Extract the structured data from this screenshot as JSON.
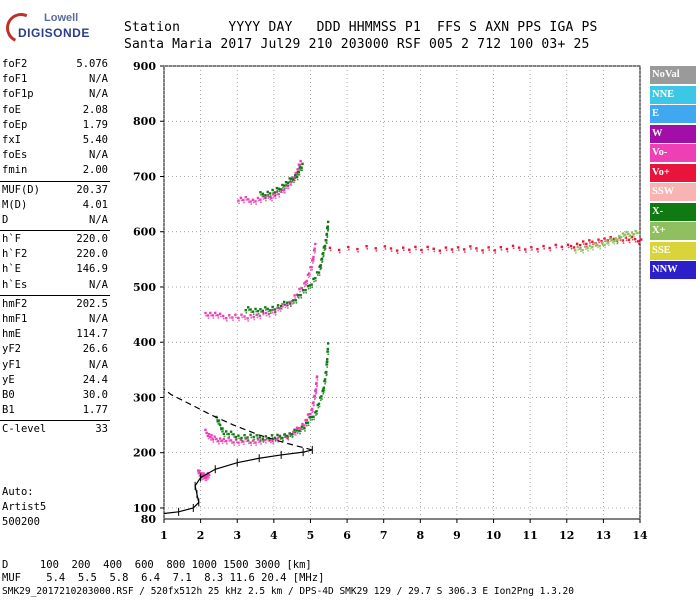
{
  "logo": {
    "line1": "Lowell",
    "line2": "DIGISONDE"
  },
  "header": {
    "row1": "Station      YYYY DAY   DDD HHMMSS P1  FFS S AXN PPS IGA PS",
    "row2": "Santa Maria 2017 Jul29 210 203000 RSF 005 2 712 100 03+ 25"
  },
  "params": [
    {
      "k": "foF2",
      "v": "5.076"
    },
    {
      "k": "foF1",
      "v": "N/A"
    },
    {
      "k": "foF1p",
      "v": "N/A"
    },
    {
      "k": "foE",
      "v": "2.08"
    },
    {
      "k": "foEp",
      "v": "1.79"
    },
    {
      "k": "fxI",
      "v": "5.40"
    },
    {
      "k": "foEs",
      "v": "N/A"
    },
    {
      "k": "fmin",
      "v": "2.00"
    }
  ],
  "params2": [
    {
      "k": "MUF(D)",
      "v": "20.37"
    },
    {
      "k": "M(D)",
      "v": "4.01"
    },
    {
      "k": "D",
      "v": "N/A"
    }
  ],
  "params3": [
    {
      "k": "h`F",
      "v": "220.0"
    },
    {
      "k": "h`F2",
      "v": "220.0"
    },
    {
      "k": "h`E",
      "v": "146.9"
    },
    {
      "k": "h`Es",
      "v": "N/A"
    }
  ],
  "params4": [
    {
      "k": "hmF2",
      "v": "202.5"
    },
    {
      "k": "hmF1",
      "v": "N/A"
    },
    {
      "k": "hmE",
      "v": "114.7"
    },
    {
      "k": "yF2",
      "v": "26.6"
    },
    {
      "k": "yF1",
      "v": "N/A"
    },
    {
      "k": "yE",
      "v": "24.4"
    },
    {
      "k": "B0",
      "v": "30.0"
    },
    {
      "k": "B1",
      "v": "1.77"
    }
  ],
  "params5": [
    {
      "k": "C-level",
      "v": "33"
    }
  ],
  "auto": {
    "l1": "Auto:",
    "l2": "Artist5",
    "l3": "500200"
  },
  "legend": [
    {
      "label": "NoVal",
      "color": "#9a9a9a"
    },
    {
      "label": "NNE",
      "color": "#3cc7e6"
    },
    {
      "label": "E",
      "color": "#3fa8f0"
    },
    {
      "label": "W",
      "color": "#a10ea8"
    },
    {
      "label": "Vo-",
      "color": "#ee3fb5"
    },
    {
      "label": "Vo+",
      "color": "#e8143b"
    },
    {
      "label": "SSW",
      "color": "#f8b3b3"
    },
    {
      "label": "X-",
      "color": "#0f7a12"
    },
    {
      "label": "X+",
      "color": "#8fbf5f"
    },
    {
      "label": "SSE",
      "color": "#d8d43a"
    },
    {
      "label": "NNW",
      "color": "#2a1fc9"
    }
  ],
  "bottom": {
    "dline": "D     100  200  400  600  800 1000 1500 3000 [km]",
    "mufline": "MUF    5.4  5.5  5.8  6.4  7.1  8.3 11.6 20.4 [MHz]"
  },
  "footer": "SMK29_2017210203000.RSF / 520fx512h 25 kHz 2.5 km / DPS-4D SMK29 129 / 29.7 S 306.3 E Ion2Png 1.3.20",
  "chart_data": {
    "type": "scatter",
    "xlim": [
      1,
      14
    ],
    "ylim": [
      80,
      900
    ],
    "xticks": [
      1,
      2,
      3,
      4,
      5,
      6,
      7,
      8,
      9,
      10,
      11,
      12,
      13,
      14
    ],
    "yticks": [
      100,
      200,
      300,
      400,
      500,
      600,
      700,
      800,
      900
    ],
    "ytick_labels_extra": {
      "80": "80"
    },
    "xlabel": "",
    "ylabel": "",
    "traces": [
      {
        "name": "F2 O-trace (1st hop)",
        "color": "#ee3fb5",
        "points": [
          [
            2.1,
            240
          ],
          [
            2.3,
            228
          ],
          [
            2.6,
            225
          ],
          [
            3.0,
            224
          ],
          [
            3.4,
            224
          ],
          [
            3.8,
            225
          ],
          [
            4.2,
            230
          ],
          [
            4.5,
            238
          ],
          [
            4.8,
            255
          ],
          [
            5.0,
            280
          ],
          [
            5.1,
            310
          ],
          [
            5.15,
            340
          ]
        ]
      },
      {
        "name": "F2 X-trace (1st hop)",
        "color": "#0f7a12",
        "points": [
          [
            2.4,
            265
          ],
          [
            2.6,
            240
          ],
          [
            3.0,
            233
          ],
          [
            3.5,
            230
          ],
          [
            4.0,
            230
          ],
          [
            4.4,
            235
          ],
          [
            4.8,
            250
          ],
          [
            5.1,
            275
          ],
          [
            5.3,
            310
          ],
          [
            5.4,
            350
          ],
          [
            5.45,
            400
          ]
        ]
      },
      {
        "name": "F2 O-trace (2nd hop)",
        "color": "#ee3fb5",
        "points": [
          [
            2.1,
            455
          ],
          [
            2.5,
            450
          ],
          [
            3.0,
            448
          ],
          [
            3.5,
            450
          ],
          [
            4.0,
            460
          ],
          [
            4.4,
            475
          ],
          [
            4.8,
            505
          ],
          [
            5.0,
            540
          ],
          [
            5.1,
            580
          ]
        ]
      },
      {
        "name": "F2 X-trace (2nd hop)",
        "color": "#0f7a12",
        "points": [
          [
            3.2,
            462
          ],
          [
            3.6,
            460
          ],
          [
            4.0,
            465
          ],
          [
            4.5,
            478
          ],
          [
            4.9,
            500
          ],
          [
            5.2,
            530
          ],
          [
            5.3,
            560
          ],
          [
            5.4,
            590
          ],
          [
            5.45,
            620
          ]
        ]
      },
      {
        "name": "F2 O-trace (3rd hop)",
        "color": "#ee3fb5",
        "points": [
          [
            3.0,
            662
          ],
          [
            3.4,
            660
          ],
          [
            3.8,
            664
          ],
          [
            4.1,
            672
          ],
          [
            4.4,
            690
          ],
          [
            4.6,
            710
          ],
          [
            4.7,
            730
          ]
        ]
      },
      {
        "name": "F2 X-trace (3rd hop)",
        "color": "#0f7a12",
        "points": [
          [
            3.6,
            670
          ],
          [
            4.0,
            675
          ],
          [
            4.3,
            690
          ],
          [
            4.6,
            705
          ],
          [
            4.75,
            725
          ]
        ]
      },
      {
        "name": "Es O-trace",
        "color": "#ee3fb5",
        "points": [
          [
            1.9,
            168
          ],
          [
            2.0,
            162
          ],
          [
            2.1,
            160
          ],
          [
            2.2,
            162
          ]
        ]
      },
      {
        "name": "spread trace",
        "color": "#e8143b",
        "points": [
          [
            5.5,
            573
          ],
          [
            7,
            572
          ],
          [
            8,
            571
          ],
          [
            9,
            572
          ],
          [
            10,
            572
          ],
          [
            11,
            574
          ],
          [
            12,
            575
          ],
          [
            12.5,
            582
          ],
          [
            13,
            588
          ],
          [
            13.5,
            590
          ],
          [
            14,
            588
          ]
        ]
      },
      {
        "name": "spread X+",
        "color": "#8fbf5f",
        "points": [
          [
            12.2,
            570
          ],
          [
            12.6,
            575
          ],
          [
            13,
            582
          ],
          [
            13.3,
            590
          ],
          [
            13.6,
            598
          ],
          [
            13.9,
            600
          ]
        ]
      }
    ],
    "profile": {
      "color": "#000",
      "points": [
        [
          1.0,
          90
        ],
        [
          1.4,
          93
        ],
        [
          1.8,
          100
        ],
        [
          1.95,
          110
        ],
        [
          1.9,
          125
        ],
        [
          1.85,
          140
        ],
        [
          2.0,
          155
        ],
        [
          2.4,
          170
        ],
        [
          3.0,
          182
        ],
        [
          3.6,
          190
        ],
        [
          4.2,
          196
        ],
        [
          4.8,
          201
        ],
        [
          5.05,
          205
        ]
      ]
    },
    "profile_upper": {
      "color": "#000",
      "points": [
        [
          5.05,
          205
        ],
        [
          4.3,
          218
        ],
        [
          3.6,
          232
        ],
        [
          2.9,
          250
        ],
        [
          2.3,
          268
        ],
        [
          1.8,
          285
        ],
        [
          1.2,
          305
        ],
        [
          1.0,
          315
        ]
      ]
    }
  }
}
